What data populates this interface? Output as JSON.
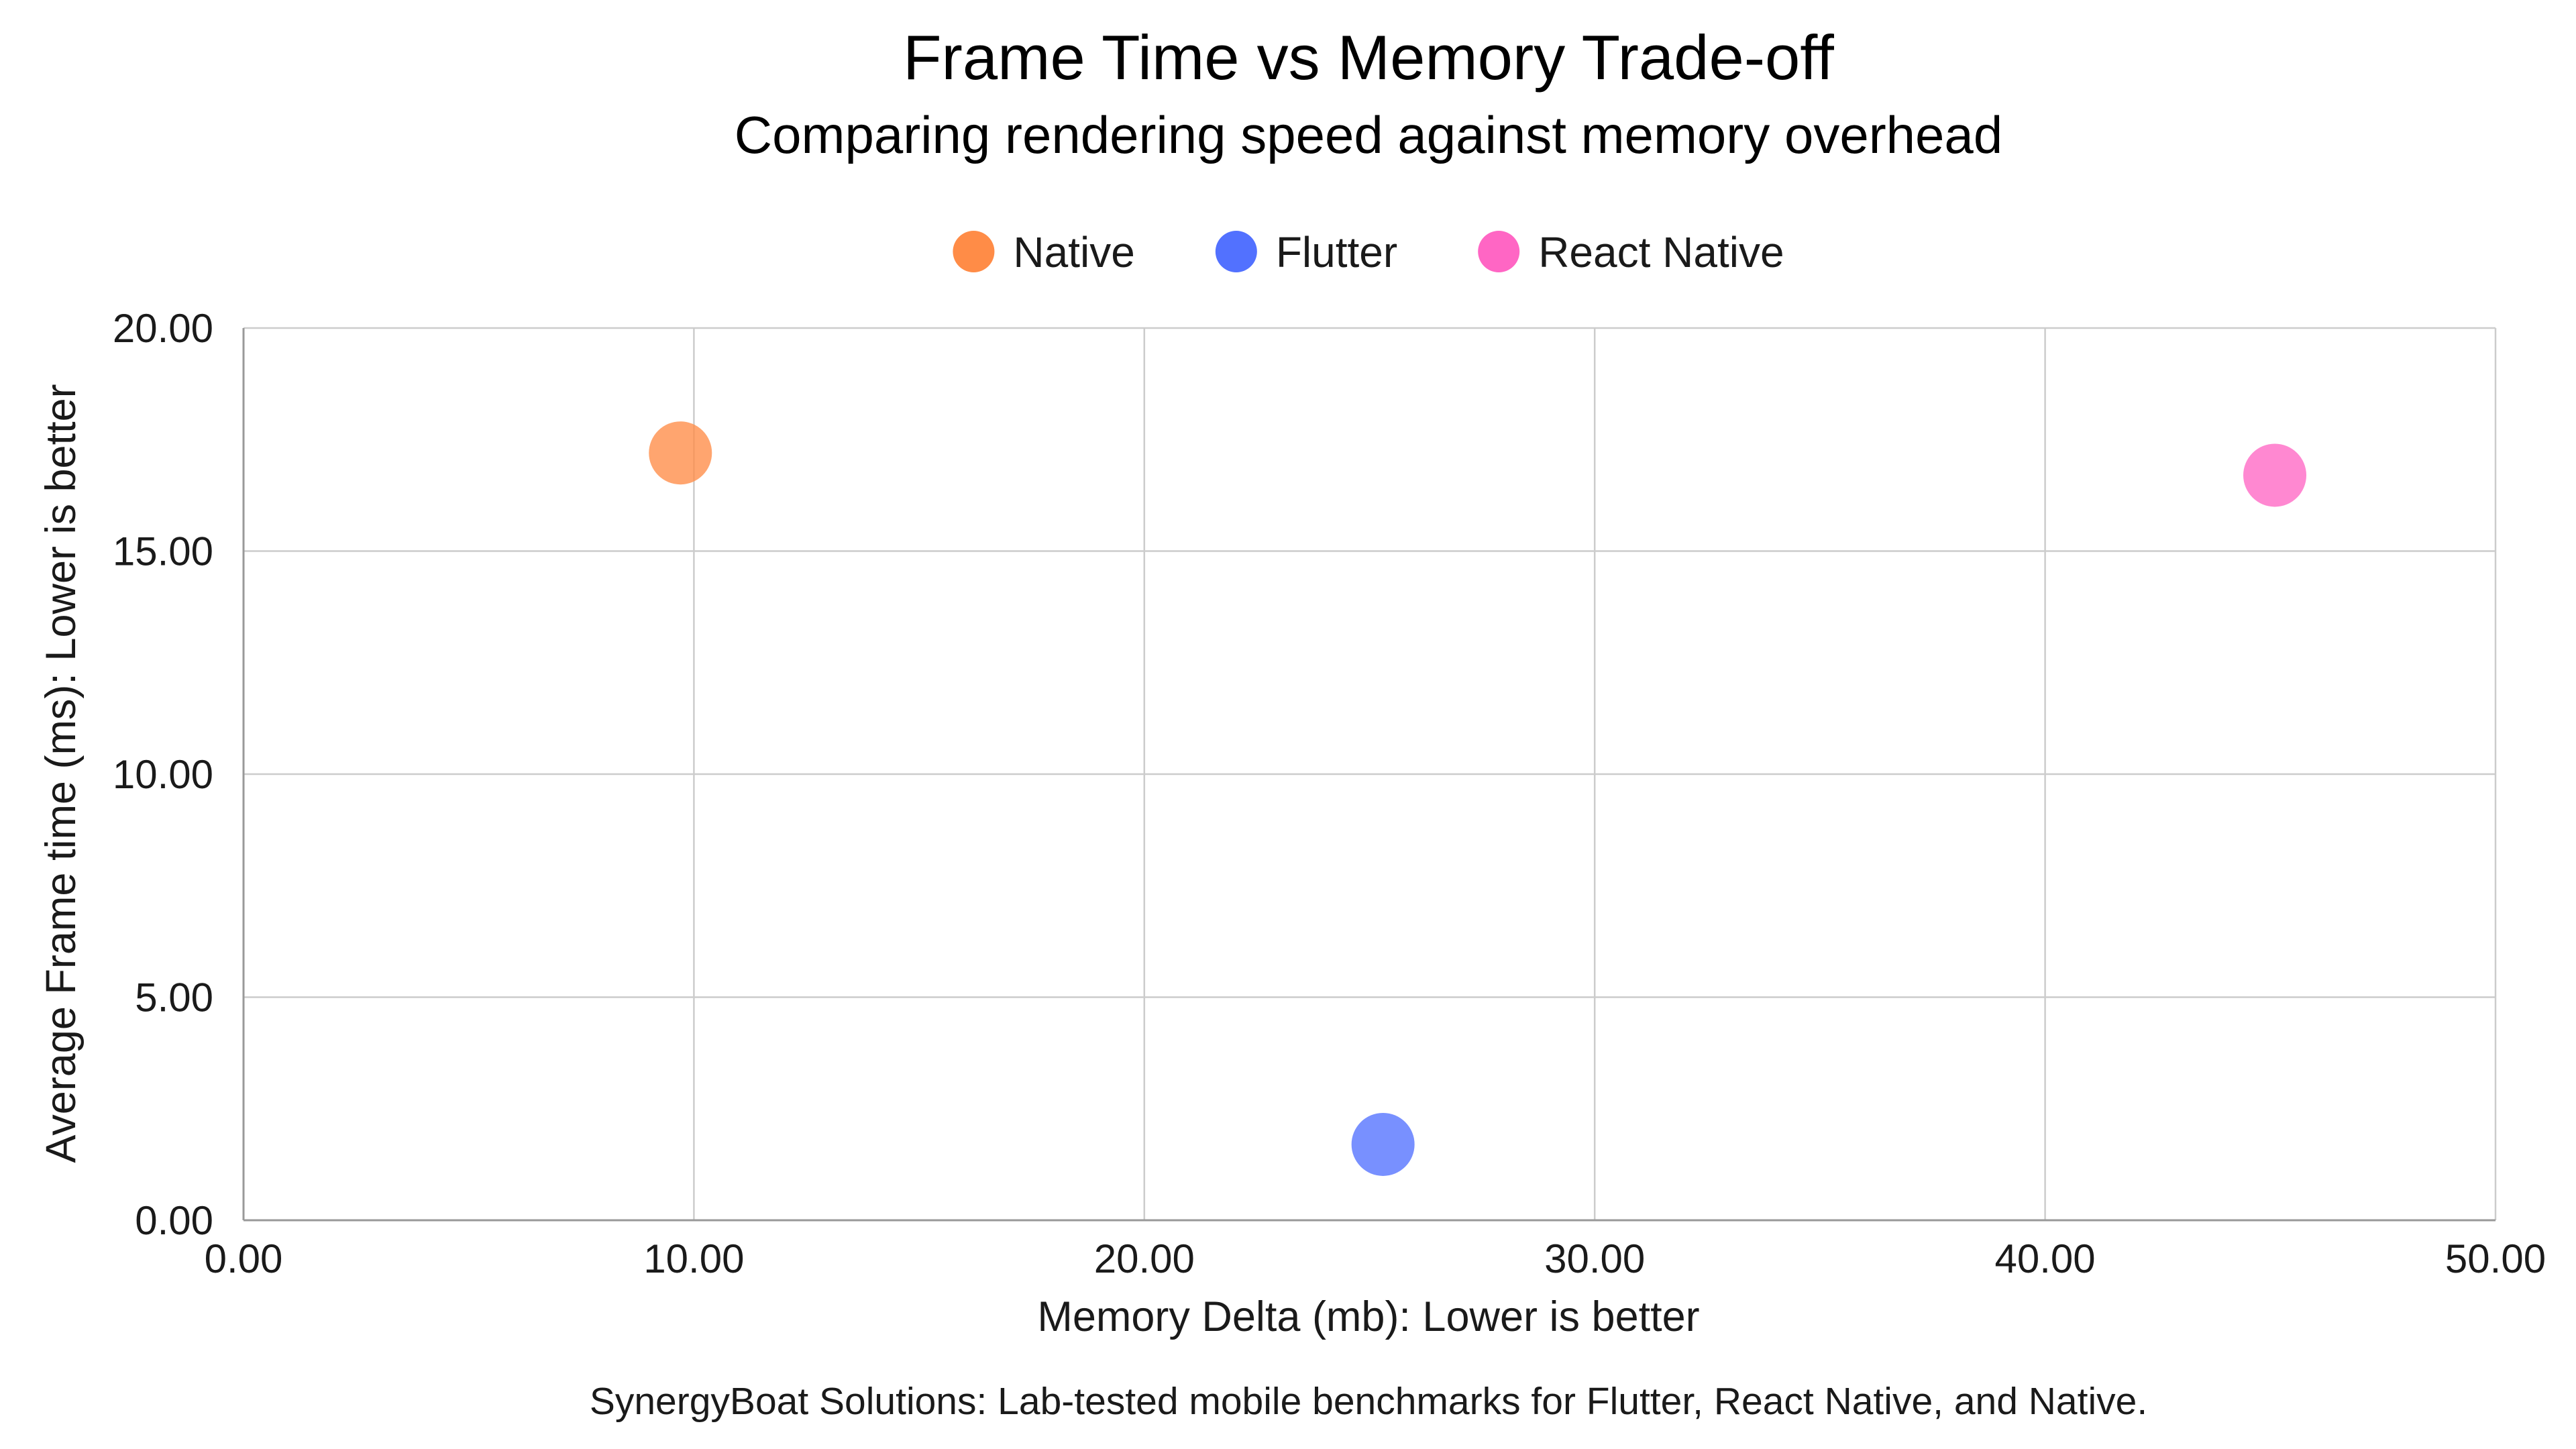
{
  "chart_data": {
    "type": "scatter",
    "title": "Frame Time vs Memory Trade-off",
    "subtitle": "Comparing rendering speed against memory overhead",
    "xlabel": "Memory Delta (mb): Lower is better",
    "ylabel": "Average Frame time (ms): Lower is better",
    "xlim": [
      0,
      50
    ],
    "ylim": [
      0,
      20
    ],
    "x_ticks": [
      "0.00",
      "10.00",
      "20.00",
      "30.00",
      "40.00",
      "50.00"
    ],
    "y_ticks": [
      "0.00",
      "5.00",
      "10.00",
      "15.00",
      "20.00"
    ],
    "grid": true,
    "legend_position": "top-center",
    "series": [
      {
        "name": "Native",
        "color": "#ff8c47",
        "points": [
          {
            "x": 9.7,
            "y": 17.2
          }
        ]
      },
      {
        "name": "Flutter",
        "color": "#5271ff",
        "points": [
          {
            "x": 25.3,
            "y": 1.7
          }
        ]
      },
      {
        "name": "React Native",
        "color": "#ff66c4",
        "points": [
          {
            "x": 45.1,
            "y": 16.7
          }
        ]
      }
    ],
    "footer": "SynergyBoat Solutions: Lab-tested mobile benchmarks for Flutter, React Native, and Native."
  }
}
